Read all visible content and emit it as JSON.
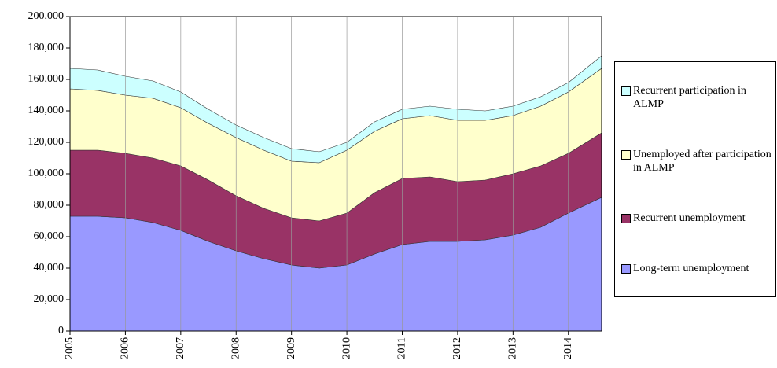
{
  "chart_data": {
    "type": "stacked-area",
    "x": [
      2005,
      2005.5,
      2006,
      2006.5,
      2007,
      2007.5,
      2008,
      2008.5,
      2009,
      2009.5,
      2010,
      2010.5,
      2011,
      2011.5,
      2012,
      2012.5,
      2013,
      2013.5,
      2014,
      2014.6
    ],
    "series": [
      {
        "name": "Long-term unemployment",
        "color": "#9999ff",
        "values": [
          73000,
          73000,
          72000,
          69000,
          64000,
          57000,
          51000,
          46000,
          42000,
          40000,
          42000,
          49000,
          55000,
          57000,
          57000,
          58000,
          61000,
          66000,
          75000,
          85000
        ]
      },
      {
        "name": "Recurrent unemployment",
        "color": "#993366",
        "values": [
          42000,
          42000,
          41000,
          41000,
          41000,
          39000,
          35000,
          32000,
          30000,
          30000,
          33000,
          39000,
          42000,
          41000,
          38000,
          38000,
          39000,
          39000,
          38000,
          41000
        ]
      },
      {
        "name": "Unemployed after participation in ALMP",
        "color": "#ffffcc",
        "values": [
          39000,
          38000,
          37000,
          38000,
          37000,
          36000,
          37000,
          37000,
          36000,
          37000,
          40000,
          39000,
          38000,
          39000,
          39000,
          38000,
          37000,
          38000,
          39000,
          41000
        ]
      },
      {
        "name": "Recurrent participation in ALMP",
        "color": "#ccffff",
        "values": [
          13000,
          13000,
          12000,
          11000,
          10000,
          9000,
          8000,
          8000,
          8000,
          7000,
          5000,
          6000,
          6000,
          6000,
          7000,
          6000,
          6000,
          6000,
          6000,
          8000
        ]
      }
    ],
    "xlim": [
      2005,
      2014.6
    ],
    "xticks": [
      2005,
      2006,
      2007,
      2008,
      2009,
      2010,
      2011,
      2012,
      2013,
      2014
    ],
    "ylim": [
      0,
      200000
    ],
    "yticks": [
      0,
      {
        "value": 20000,
        "label": "20,000"
      },
      {
        "value": 40000,
        "label": "40,000"
      },
      {
        "value": 60000,
        "label": "60,000"
      },
      {
        "value": 80000,
        "label": "80,000"
      },
      {
        "value": 100000,
        "label": "100,000"
      },
      {
        "value": 120000,
        "label": "120,000"
      },
      {
        "value": 140000,
        "label": "140,000"
      },
      {
        "value": 160000,
        "label": "160,000"
      },
      {
        "value": 180000,
        "label": "180,000"
      },
      {
        "value": 200000,
        "label": "200,000"
      }
    ],
    "grid": true
  }
}
